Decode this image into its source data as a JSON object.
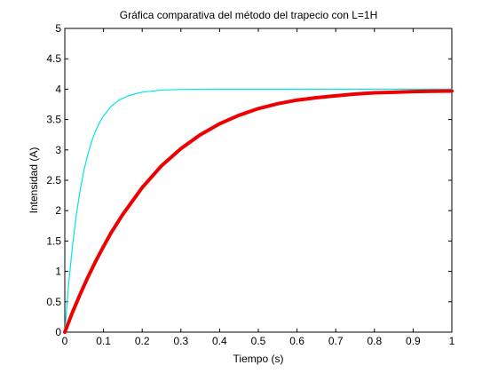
{
  "chart_data": {
    "type": "line",
    "title": "Gráfica comparativa del método del trapecio con L=1H",
    "xlabel": "Tiempo (s)",
    "ylabel": "Intensidad (A)",
    "xlim": [
      0,
      1
    ],
    "ylim": [
      0,
      5
    ],
    "x_ticks": [
      "0",
      "0.1",
      "0.2",
      "0.3",
      "0.4",
      "0.5",
      "0.6",
      "0.7",
      "0.8",
      "0.9",
      "1"
    ],
    "y_ticks": [
      "0",
      "0.5",
      "1",
      "1.5",
      "2",
      "2.5",
      "3",
      "3.5",
      "4",
      "4.5",
      "5"
    ],
    "grid": false,
    "legend": "none",
    "series": [
      {
        "color": "#00e5e5",
        "x": [
          0,
          0.01,
          0.02,
          0.03,
          0.04,
          0.05,
          0.06,
          0.07,
          0.08,
          0.09,
          0.1,
          0.12,
          0.14,
          0.16,
          0.18,
          0.2,
          0.25,
          0.3,
          0.4,
          0.5,
          0.6,
          0.7,
          0.8,
          0.9,
          1.0
        ],
        "y": [
          0,
          0.8,
          1.43,
          1.94,
          2.35,
          2.68,
          2.94,
          3.15,
          3.32,
          3.45,
          3.56,
          3.72,
          3.82,
          3.88,
          3.92,
          3.95,
          3.985,
          3.996,
          4.0,
          4.0,
          4.0,
          4.0,
          4.0,
          4.0,
          4.0
        ]
      },
      {
        "color": "#ee0000",
        "x": [
          0,
          0.02,
          0.04,
          0.06,
          0.08,
          0.1,
          0.12,
          0.15,
          0.2,
          0.25,
          0.3,
          0.35,
          0.4,
          0.45,
          0.5,
          0.55,
          0.6,
          0.65,
          0.7,
          0.75,
          0.8,
          0.85,
          0.9,
          0.95,
          1.0
        ],
        "y": [
          0,
          0.33,
          0.63,
          0.91,
          1.17,
          1.41,
          1.64,
          1.94,
          2.38,
          2.74,
          3.02,
          3.25,
          3.43,
          3.57,
          3.68,
          3.76,
          3.82,
          3.86,
          3.89,
          3.92,
          3.94,
          3.95,
          3.96,
          3.965,
          3.97
        ]
      }
    ]
  }
}
